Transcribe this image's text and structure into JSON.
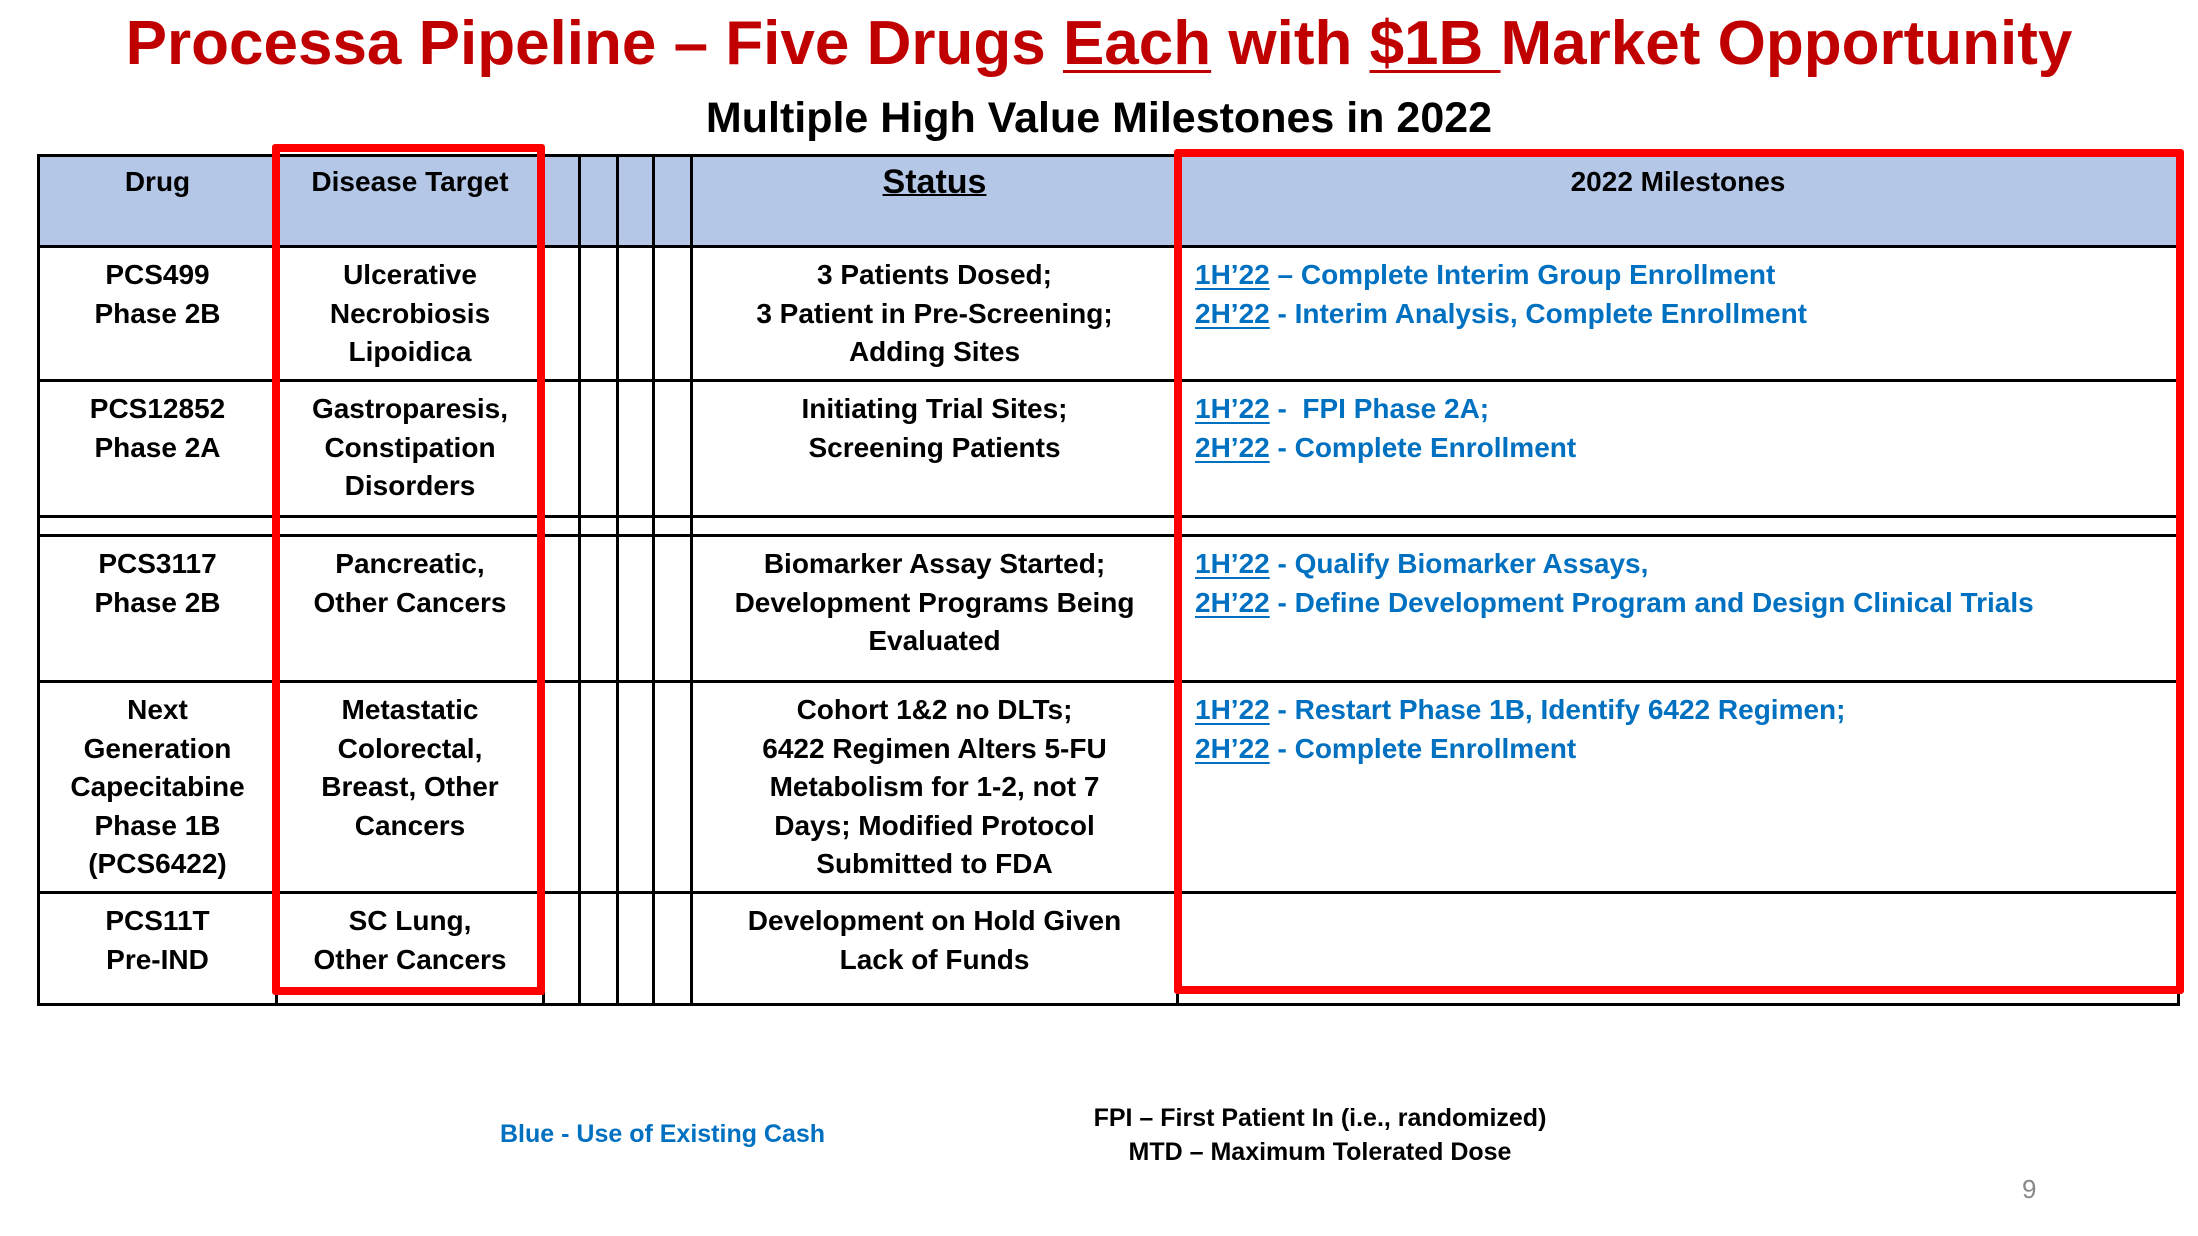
{
  "title": {
    "part1": "Processa Pipeline – Five Drugs ",
    "each": "Each",
    "part2": " with ",
    "amount": "$1B ",
    "part3": "Market Opportunity"
  },
  "subtitle": "Multiple High Value Milestones in 2022",
  "colors": {
    "title": "#c00000",
    "header_bg": "#b4c7e7",
    "milestone_text": "#0070c0",
    "highlight_box": "#ff0000"
  },
  "table": {
    "headers": {
      "drug": "Drug",
      "disease": "Disease Target",
      "status": "Status",
      "milestones": "2022 Milestones"
    },
    "rows": [
      {
        "drug": [
          "PCS499",
          "Phase 2B"
        ],
        "disease": [
          "Ulcerative",
          "Necrobiosis",
          "Lipoidica"
        ],
        "status": [
          "3 Patients Dosed;",
          "3 Patient in Pre-Screening;",
          "Adding Sites"
        ],
        "milestones": [
          {
            "period": "1H’22",
            "text": " – Complete Interim Group Enrollment"
          },
          {
            "period": "2H’22",
            "text": " - Interim Analysis, Complete Enrollment"
          }
        ]
      },
      {
        "drug": [
          "PCS12852",
          "Phase 2A"
        ],
        "disease": [
          "Gastroparesis,",
          "Constipation",
          "Disorders"
        ],
        "status": [
          "Initiating Trial Sites;",
          "Screening Patients"
        ],
        "milestones": [
          {
            "period": "1H’22",
            "text": " -  FPI Phase 2A;"
          },
          {
            "period": "2H’22",
            "text": " - Complete Enrollment"
          }
        ]
      },
      {
        "drug": [
          "PCS3117",
          "Phase 2B"
        ],
        "disease": [
          "Pancreatic,",
          "Other Cancers"
        ],
        "status": [
          "Biomarker Assay Started;",
          "Development Programs Being",
          "Evaluated"
        ],
        "milestones": [
          {
            "period": "1H’22",
            "text": " - Qualify Biomarker Assays,"
          },
          {
            "period": "2H’22",
            "text": " - Define Development Program and Design Clinical Trials"
          }
        ]
      },
      {
        "drug": [
          "Next",
          "Generation",
          "Capecitabine",
          "Phase 1B",
          "(PCS6422)"
        ],
        "disease": [
          "Metastatic",
          "Colorectal,",
          "Breast, Other",
          "Cancers"
        ],
        "status": [
          "Cohort 1&2 no DLTs;",
          "6422 Regimen Alters 5-FU",
          "Metabolism for 1-2, not 7",
          "Days; Modified Protocol",
          "Submitted to FDA"
        ],
        "milestones": [
          {
            "period": "1H’22",
            "text": " - Restart Phase 1B, Identify 6422 Regimen;"
          },
          {
            "period": "2H’22",
            "text": " - Complete Enrollment"
          }
        ]
      },
      {
        "drug": [
          "PCS11T",
          "Pre-IND"
        ],
        "disease": [
          "SC Lung,",
          "Other Cancers"
        ],
        "status": [
          "Development on Hold Given",
          "Lack of Funds"
        ],
        "milestones": []
      }
    ]
  },
  "footer": {
    "legend": "Blue - Use of Existing Cash",
    "fpi": "FPI – First Patient In (i.e., randomized)",
    "mtd": "MTD – Maximum Tolerated Dose",
    "page_number": "9"
  }
}
